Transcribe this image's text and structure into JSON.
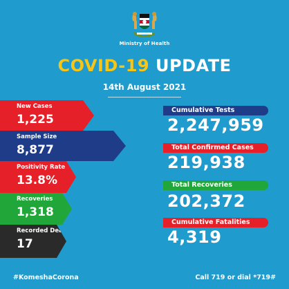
{
  "header": {
    "ministry": "Ministry of Health",
    "title_word1": "COVID-19",
    "title_word2": "UPDATE",
    "date": "14th August 2021"
  },
  "left_stats": [
    {
      "label": "New Cases",
      "value": "1,225",
      "color": "#e52028"
    },
    {
      "label": "Sample Size",
      "value": "8,877",
      "color": "#1e3c87"
    },
    {
      "label": "Positivity Rate",
      "value": "13.8%",
      "color": "#e52028"
    },
    {
      "label": "Recoveries",
      "value": "1,318",
      "color": "#21a739"
    },
    {
      "label": "Recorded Deaths",
      "value": "17",
      "color": "#2a2a2a"
    }
  ],
  "right_stats": [
    {
      "label": "Cumulative Tests",
      "value": "2,247,959",
      "color": "#1e3c87"
    },
    {
      "label": "Total Confirmed Cases",
      "value": "219,938",
      "color": "#e52028"
    },
    {
      "label": "Total Recoveries",
      "value": "202,372",
      "color": "#21a739"
    },
    {
      "label": "Cumulative Fatalities",
      "value": "4,319",
      "color": "#e52028"
    }
  ],
  "footer": {
    "hashtag": "#KomeshaCorona",
    "hotline": "Call 719 or dial *719#"
  },
  "colors": {
    "background": "#1f9bcd",
    "accent_yellow": "#f5c518"
  }
}
